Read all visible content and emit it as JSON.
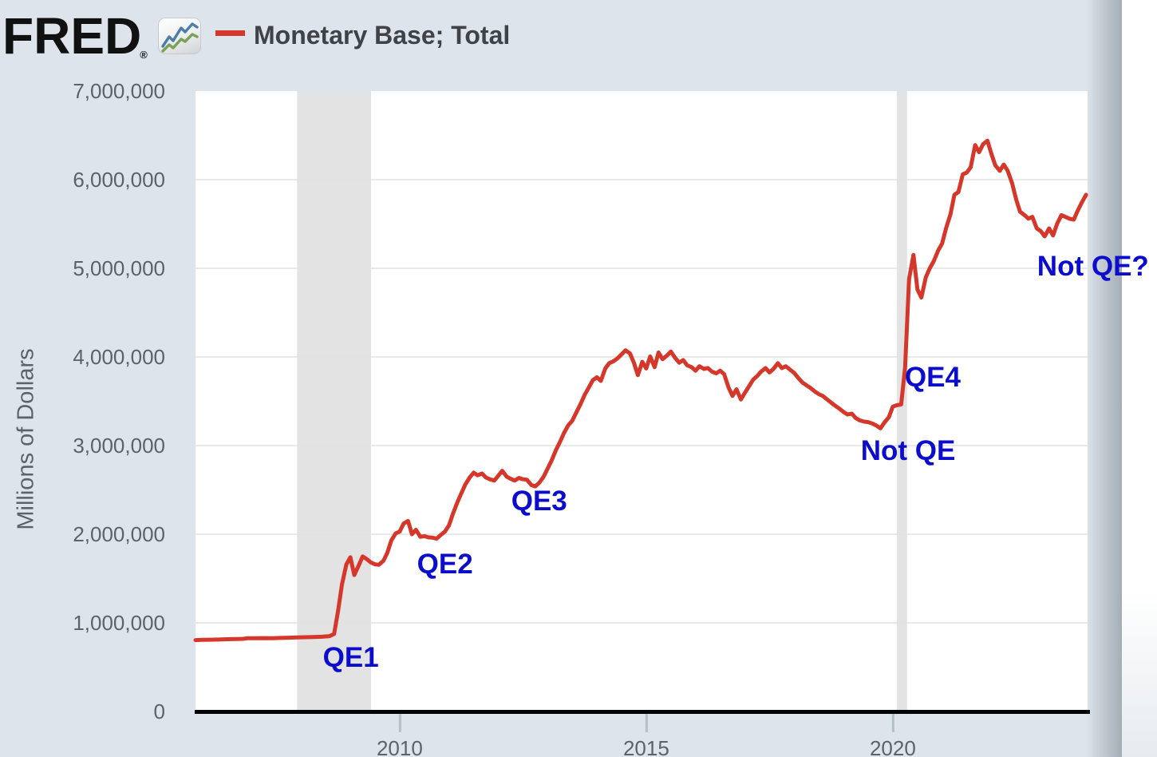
{
  "header": {
    "logo_text": "FRED",
    "logo_registered": "®",
    "legend_label": "Monetary Base; Total"
  },
  "y_axis": {
    "title": "Millions of Dollars",
    "tick_labels": [
      "7,000,000",
      "6,000,000",
      "5,000,000",
      "4,000,000",
      "3,000,000",
      "2,000,000",
      "1,000,000",
      "0"
    ],
    "tick_values": [
      7000000,
      6000000,
      5000000,
      4000000,
      3000000,
      2000000,
      1000000,
      0
    ]
  },
  "x_axis": {
    "tick_labels": [
      "2010",
      "2015",
      "2020"
    ],
    "tick_values": [
      2010,
      2015,
      2020
    ]
  },
  "colors": {
    "background": "#dde4eb",
    "plot_background": "#ffffff",
    "line": "#d5382b",
    "gridline": "#e2e2e2",
    "recession_band": "#e3e3e3",
    "axis_line": "#000000",
    "tick_mark": "#b6c0c9",
    "tick_label": "#5b6269",
    "annotation": "#0c0ccd",
    "legend_text": "#3f4347",
    "logo": "#111111",
    "icon_line_blue": "#4e7ca8",
    "icon_line_green": "#79a159",
    "edge_shadow": "#a3abb4",
    "right_margin": "#ffffff"
  },
  "chart_data": {
    "type": "line",
    "title": "Monetary Base; Total",
    "xlabel": "",
    "ylabel": "Millions of Dollars",
    "x_range": [
      2005.86,
      2023.95
    ],
    "ylim": [
      0,
      7000000
    ],
    "grid": "horizontal",
    "legend_position": "top-left-header",
    "recession_bands": [
      {
        "start": 2007.92,
        "end": 2009.42
      },
      {
        "start": 2020.08,
        "end": 2020.29
      }
    ],
    "annotations": [
      {
        "label": "QE1",
        "year": 2009.01,
        "value": 600000
      },
      {
        "label": "QE2",
        "year": 2010.92,
        "value": 1655000
      },
      {
        "label": "QE3",
        "year": 2012.83,
        "value": 2370000
      },
      {
        "label": "QE4",
        "year": 2020.81,
        "value": 3770000
      },
      {
        "label": "Not QE",
        "year": 2020.31,
        "value": 2940000
      },
      {
        "label": "Not QE?",
        "year": 2024.06,
        "value": 5020000
      }
    ],
    "series": [
      {
        "name": "Monetary Base; Total",
        "color": "#d5382b",
        "points": [
          [
            2005.86,
            805000
          ],
          [
            2006.0,
            808000
          ],
          [
            2006.17,
            810000
          ],
          [
            2006.33,
            812000
          ],
          [
            2006.5,
            815000
          ],
          [
            2006.67,
            818000
          ],
          [
            2006.83,
            820000
          ],
          [
            2006.92,
            827000
          ],
          [
            2007.08,
            826000
          ],
          [
            2007.25,
            828000
          ],
          [
            2007.42,
            827000
          ],
          [
            2007.58,
            830000
          ],
          [
            2007.75,
            832000
          ],
          [
            2007.92,
            836000
          ],
          [
            2008.08,
            838000
          ],
          [
            2008.25,
            840000
          ],
          [
            2008.42,
            843000
          ],
          [
            2008.58,
            850000
          ],
          [
            2008.67,
            875000
          ],
          [
            2008.75,
            1130000
          ],
          [
            2008.83,
            1435000
          ],
          [
            2008.92,
            1660000
          ],
          [
            2009.0,
            1740000
          ],
          [
            2009.08,
            1540000
          ],
          [
            2009.17,
            1650000
          ],
          [
            2009.25,
            1750000
          ],
          [
            2009.33,
            1720000
          ],
          [
            2009.42,
            1680000
          ],
          [
            2009.5,
            1660000
          ],
          [
            2009.58,
            1655000
          ],
          [
            2009.67,
            1700000
          ],
          [
            2009.75,
            1790000
          ],
          [
            2009.83,
            1930000
          ],
          [
            2009.92,
            2010000
          ],
          [
            2010.0,
            2030000
          ],
          [
            2010.08,
            2120000
          ],
          [
            2010.17,
            2150000
          ],
          [
            2010.25,
            2000000
          ],
          [
            2010.33,
            2050000
          ],
          [
            2010.42,
            1970000
          ],
          [
            2010.5,
            1978000
          ],
          [
            2010.58,
            1965000
          ],
          [
            2010.67,
            1960000
          ],
          [
            2010.75,
            1950000
          ],
          [
            2010.83,
            1990000
          ],
          [
            2010.92,
            2030000
          ],
          [
            2011.0,
            2100000
          ],
          [
            2011.08,
            2230000
          ],
          [
            2011.17,
            2360000
          ],
          [
            2011.25,
            2460000
          ],
          [
            2011.33,
            2560000
          ],
          [
            2011.42,
            2640000
          ],
          [
            2011.5,
            2695000
          ],
          [
            2011.58,
            2665000
          ],
          [
            2011.67,
            2685000
          ],
          [
            2011.75,
            2640000
          ],
          [
            2011.83,
            2620000
          ],
          [
            2011.92,
            2605000
          ],
          [
            2012.0,
            2660000
          ],
          [
            2012.08,
            2715000
          ],
          [
            2012.17,
            2650000
          ],
          [
            2012.25,
            2625000
          ],
          [
            2012.33,
            2605000
          ],
          [
            2012.42,
            2635000
          ],
          [
            2012.5,
            2620000
          ],
          [
            2012.58,
            2615000
          ],
          [
            2012.67,
            2555000
          ],
          [
            2012.75,
            2540000
          ],
          [
            2012.83,
            2580000
          ],
          [
            2012.92,
            2650000
          ],
          [
            2013.0,
            2740000
          ],
          [
            2013.08,
            2830000
          ],
          [
            2013.17,
            2950000
          ],
          [
            2013.25,
            3040000
          ],
          [
            2013.33,
            3140000
          ],
          [
            2013.42,
            3230000
          ],
          [
            2013.5,
            3280000
          ],
          [
            2013.58,
            3370000
          ],
          [
            2013.67,
            3470000
          ],
          [
            2013.75,
            3570000
          ],
          [
            2013.83,
            3650000
          ],
          [
            2013.92,
            3740000
          ],
          [
            2014.0,
            3770000
          ],
          [
            2014.08,
            3730000
          ],
          [
            2014.17,
            3870000
          ],
          [
            2014.25,
            3930000
          ],
          [
            2014.33,
            3950000
          ],
          [
            2014.42,
            3985000
          ],
          [
            2014.5,
            4030000
          ],
          [
            2014.58,
            4075000
          ],
          [
            2014.67,
            4040000
          ],
          [
            2014.75,
            3935000
          ],
          [
            2014.83,
            3795000
          ],
          [
            2014.92,
            3945000
          ],
          [
            2015.0,
            3870000
          ],
          [
            2015.08,
            4005000
          ],
          [
            2015.17,
            3885000
          ],
          [
            2015.25,
            4050000
          ],
          [
            2015.33,
            3975000
          ],
          [
            2015.42,
            4015000
          ],
          [
            2015.5,
            4060000
          ],
          [
            2015.58,
            3995000
          ],
          [
            2015.67,
            3935000
          ],
          [
            2015.75,
            3965000
          ],
          [
            2015.83,
            3905000
          ],
          [
            2015.92,
            3885000
          ],
          [
            2016.0,
            3845000
          ],
          [
            2016.08,
            3895000
          ],
          [
            2016.17,
            3865000
          ],
          [
            2016.25,
            3875000
          ],
          [
            2016.33,
            3835000
          ],
          [
            2016.42,
            3815000
          ],
          [
            2016.5,
            3845000
          ],
          [
            2016.58,
            3805000
          ],
          [
            2016.67,
            3655000
          ],
          [
            2016.75,
            3560000
          ],
          [
            2016.83,
            3635000
          ],
          [
            2016.92,
            3520000
          ],
          [
            2017.0,
            3595000
          ],
          [
            2017.08,
            3665000
          ],
          [
            2017.17,
            3745000
          ],
          [
            2017.25,
            3785000
          ],
          [
            2017.33,
            3835000
          ],
          [
            2017.42,
            3875000
          ],
          [
            2017.5,
            3825000
          ],
          [
            2017.58,
            3865000
          ],
          [
            2017.67,
            3930000
          ],
          [
            2017.75,
            3875000
          ],
          [
            2017.83,
            3895000
          ],
          [
            2017.92,
            3855000
          ],
          [
            2018.0,
            3820000
          ],
          [
            2018.08,
            3765000
          ],
          [
            2018.17,
            3710000
          ],
          [
            2018.25,
            3680000
          ],
          [
            2018.33,
            3650000
          ],
          [
            2018.42,
            3610000
          ],
          [
            2018.5,
            3580000
          ],
          [
            2018.58,
            3560000
          ],
          [
            2018.67,
            3520000
          ],
          [
            2018.75,
            3485000
          ],
          [
            2018.83,
            3450000
          ],
          [
            2018.92,
            3415000
          ],
          [
            2019.0,
            3380000
          ],
          [
            2019.08,
            3350000
          ],
          [
            2019.17,
            3360000
          ],
          [
            2019.25,
            3310000
          ],
          [
            2019.33,
            3285000
          ],
          [
            2019.42,
            3270000
          ],
          [
            2019.5,
            3265000
          ],
          [
            2019.58,
            3250000
          ],
          [
            2019.67,
            3225000
          ],
          [
            2019.75,
            3195000
          ],
          [
            2019.83,
            3260000
          ],
          [
            2019.92,
            3320000
          ],
          [
            2020.0,
            3440000
          ],
          [
            2020.08,
            3455000
          ],
          [
            2020.17,
            3465000
          ],
          [
            2020.25,
            3880000
          ],
          [
            2020.33,
            4880000
          ],
          [
            2020.42,
            5150000
          ],
          [
            2020.5,
            4760000
          ],
          [
            2020.58,
            4670000
          ],
          [
            2020.67,
            4900000
          ],
          [
            2020.75,
            5000000
          ],
          [
            2020.83,
            5080000
          ],
          [
            2020.92,
            5200000
          ],
          [
            2021.0,
            5280000
          ],
          [
            2021.08,
            5450000
          ],
          [
            2021.17,
            5610000
          ],
          [
            2021.25,
            5830000
          ],
          [
            2021.33,
            5860000
          ],
          [
            2021.42,
            6060000
          ],
          [
            2021.5,
            6080000
          ],
          [
            2021.58,
            6140000
          ],
          [
            2021.67,
            6390000
          ],
          [
            2021.75,
            6310000
          ],
          [
            2021.83,
            6400000
          ],
          [
            2021.92,
            6440000
          ],
          [
            2022.0,
            6290000
          ],
          [
            2022.08,
            6160000
          ],
          [
            2022.17,
            6100000
          ],
          [
            2022.25,
            6170000
          ],
          [
            2022.33,
            6100000
          ],
          [
            2022.42,
            5960000
          ],
          [
            2022.5,
            5780000
          ],
          [
            2022.58,
            5640000
          ],
          [
            2022.67,
            5600000
          ],
          [
            2022.75,
            5560000
          ],
          [
            2022.83,
            5580000
          ],
          [
            2022.92,
            5450000
          ],
          [
            2023.0,
            5420000
          ],
          [
            2023.08,
            5360000
          ],
          [
            2023.17,
            5450000
          ],
          [
            2023.25,
            5370000
          ],
          [
            2023.33,
            5500000
          ],
          [
            2023.42,
            5600000
          ],
          [
            2023.5,
            5580000
          ],
          [
            2023.58,
            5560000
          ],
          [
            2023.67,
            5550000
          ],
          [
            2023.75,
            5650000
          ],
          [
            2023.83,
            5740000
          ],
          [
            2023.92,
            5830000
          ]
        ]
      }
    ]
  }
}
